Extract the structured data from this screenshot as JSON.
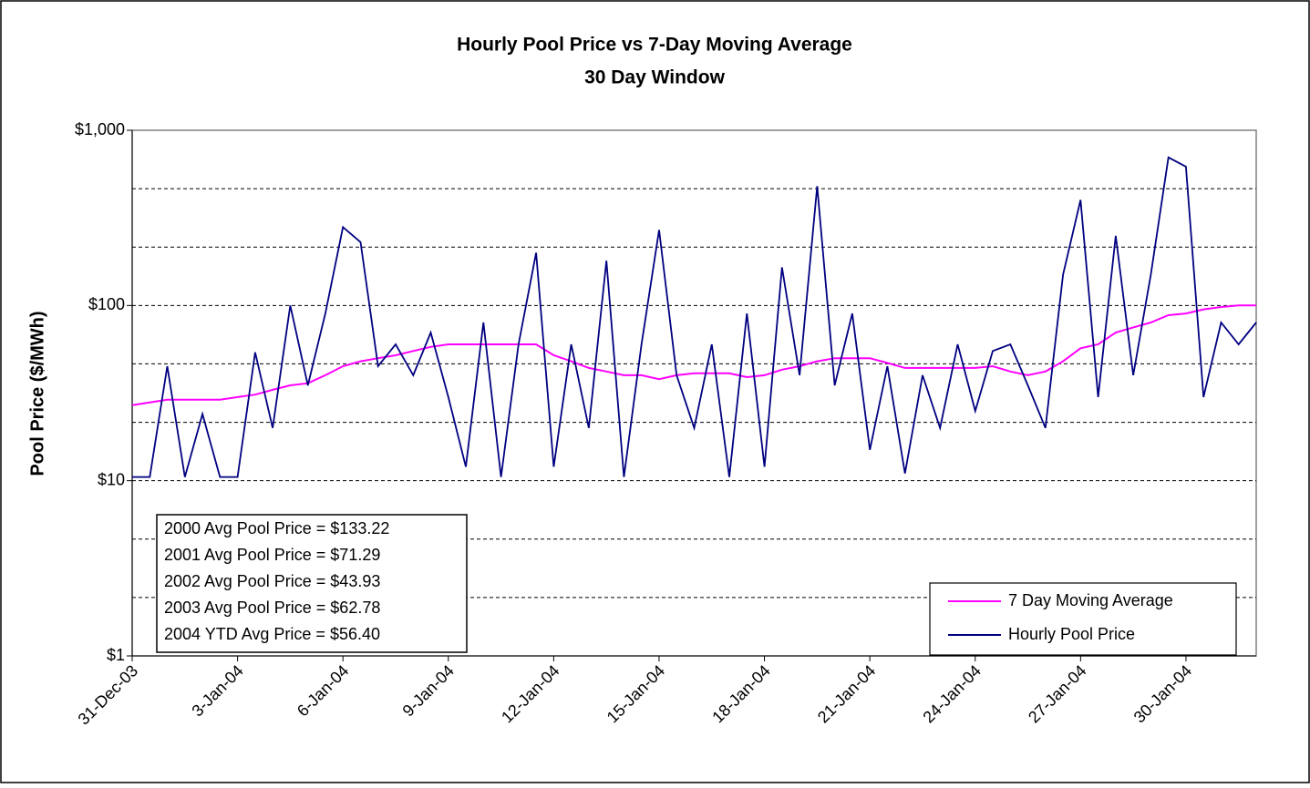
{
  "chart_data": {
    "type": "line",
    "title": "Hourly Pool Price vs 7-Day Moving Average",
    "subtitle": "30 Day Window",
    "y_label": "Pool Price ($/MWh)",
    "log_scale": true,
    "grid": true,
    "legend": "lower right",
    "xlim": [
      0,
      32
    ],
    "xticks": [
      {
        "value": 0,
        "label": "31-Dec-03"
      },
      {
        "value": 3,
        "label": "3-Jan-04"
      },
      {
        "value": 6,
        "label": "6-Jan-04"
      },
      {
        "value": 9,
        "label": "9-Jan-04"
      },
      {
        "value": 12,
        "label": "12-Jan-04"
      },
      {
        "value": 15,
        "label": "15-Jan-04"
      },
      {
        "value": 18,
        "label": "18-Jan-04"
      },
      {
        "value": 21,
        "label": "21-Jan-04"
      },
      {
        "value": 24,
        "label": "24-Jan-04"
      },
      {
        "value": 27,
        "label": "27-Jan-04"
      },
      {
        "value": 30,
        "label": "30-Jan-04"
      }
    ],
    "ylim": [
      1,
      1000
    ],
    "yticks": [
      {
        "value": 1,
        "label": "$1"
      },
      {
        "value": 10,
        "label": "$10"
      },
      {
        "value": 100,
        "label": "$100"
      },
      {
        "value": 1000,
        "label": "$1,000"
      }
    ],
    "y_minor_gridlines": [
      2.154,
      4.642,
      21.54,
      46.42,
      215.4,
      464.2
    ],
    "annotations": [
      "2000 Avg Pool Price = $133.22",
      "2001 Avg Pool Price = $71.29",
      "2002 Avg Pool Price = $43.93",
      "2003 Avg Pool Price = $62.78",
      "2004 YTD Avg Price = $56.40"
    ],
    "x": [
      0,
      0.5,
      1,
      1.5,
      2,
      2.5,
      3,
      3.5,
      4,
      4.5,
      5,
      5.5,
      6,
      6.5,
      7,
      7.5,
      8,
      8.5,
      9,
      9.5,
      10,
      10.5,
      11,
      11.5,
      12,
      12.5,
      13,
      13.5,
      14,
      14.5,
      15,
      15.5,
      16,
      16.5,
      17,
      17.5,
      18,
      18.5,
      19,
      19.5,
      20,
      20.5,
      21,
      21.5,
      22,
      22.5,
      23,
      23.5,
      24,
      24.5,
      25,
      25.5,
      26,
      26.5,
      27,
      27.5,
      28,
      28.5,
      29,
      29.5,
      30,
      30.5,
      31,
      31.5,
      32
    ],
    "series": [
      {
        "name": "7 Day Moving Average",
        "color": "#ff00ff",
        "values": [
          27,
          28,
          29,
          29,
          29,
          29,
          30,
          31,
          33,
          35,
          36,
          40,
          45,
          48,
          50,
          52,
          55,
          58,
          60,
          60,
          60,
          60,
          60,
          60,
          52,
          48,
          44,
          42,
          40,
          40,
          38,
          40,
          41,
          41,
          41,
          39,
          40,
          43,
          45,
          48,
          50,
          50,
          50,
          47,
          44,
          44,
          44,
          44,
          44,
          45,
          42,
          40,
          42,
          48,
          57,
          60,
          70,
          75,
          80,
          88,
          90,
          95,
          98,
          100,
          100
        ]
      },
      {
        "name": "Hourly Pool Price",
        "color": "#000080",
        "values": [
          10.5,
          10.5,
          45,
          10.5,
          24,
          10.5,
          10.5,
          54,
          20,
          100,
          35,
          90,
          280,
          230,
          45,
          60,
          40,
          70,
          30,
          12,
          80,
          10.5,
          60,
          200,
          12,
          60,
          20,
          180,
          10.5,
          60,
          270,
          40,
          20,
          60,
          10.5,
          90,
          12,
          165,
          40,
          480,
          35,
          90,
          15,
          45,
          11,
          40,
          20,
          60,
          25,
          55,
          60,
          35,
          20,
          150,
          400,
          30,
          250,
          40,
          150,
          700,
          620,
          30,
          80,
          60,
          80
        ]
      }
    ]
  }
}
